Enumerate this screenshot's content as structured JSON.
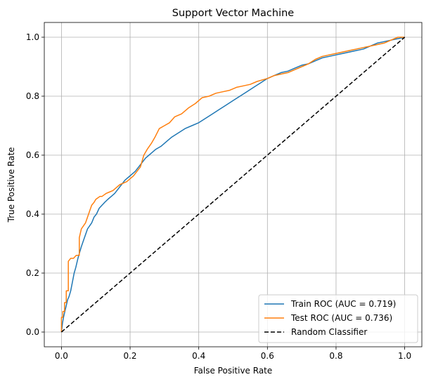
{
  "chart_data": {
    "type": "line",
    "title": "Support Vector Machine",
    "xlabel": "False Positive Rate",
    "ylabel": "True Positive Rate",
    "xlim": [
      -0.05,
      1.05
    ],
    "ylim": [
      -0.05,
      1.05
    ],
    "grid": true,
    "legend_position": "lower-right",
    "xticks": [
      {
        "value": 0.0,
        "label": "0.0"
      },
      {
        "value": 0.2,
        "label": "0.2"
      },
      {
        "value": 0.4,
        "label": "0.4"
      },
      {
        "value": 0.6,
        "label": "0.6"
      },
      {
        "value": 0.8,
        "label": "0.8"
      },
      {
        "value": 1.0,
        "label": "1.0"
      }
    ],
    "yticks": [
      {
        "value": 0.0,
        "label": "0.0"
      },
      {
        "value": 0.2,
        "label": "0.2"
      },
      {
        "value": 0.4,
        "label": "0.4"
      },
      {
        "value": 0.6,
        "label": "0.6"
      },
      {
        "value": 0.8,
        "label": "0.8"
      },
      {
        "value": 1.0,
        "label": "1.0"
      }
    ],
    "series": [
      {
        "name": "Train ROC (AUC = 0.719)",
        "color": "#1f77b4",
        "dash": "solid",
        "x": [
          0.0,
          0.003,
          0.006,
          0.01,
          0.014,
          0.018,
          0.022,
          0.027,
          0.032,
          0.037,
          0.042,
          0.048,
          0.053,
          0.058,
          0.064,
          0.07,
          0.076,
          0.082,
          0.088,
          0.095,
          0.102,
          0.11,
          0.118,
          0.126,
          0.135,
          0.145,
          0.155,
          0.165,
          0.175,
          0.185,
          0.195,
          0.205,
          0.215,
          0.225,
          0.235,
          0.245,
          0.255,
          0.265,
          0.275,
          0.29,
          0.305,
          0.32,
          0.34,
          0.36,
          0.38,
          0.4,
          0.42,
          0.44,
          0.46,
          0.48,
          0.5,
          0.52,
          0.54,
          0.56,
          0.58,
          0.6,
          0.62,
          0.64,
          0.66,
          0.68,
          0.7,
          0.72,
          0.74,
          0.76,
          0.78,
          0.8,
          0.82,
          0.84,
          0.86,
          0.88,
          0.9,
          0.92,
          0.94,
          0.96,
          0.98,
          1.0
        ],
        "y": [
          0.0,
          0.03,
          0.05,
          0.07,
          0.09,
          0.11,
          0.12,
          0.14,
          0.17,
          0.2,
          0.22,
          0.25,
          0.27,
          0.29,
          0.31,
          0.33,
          0.35,
          0.36,
          0.37,
          0.39,
          0.4,
          0.42,
          0.43,
          0.44,
          0.45,
          0.46,
          0.47,
          0.485,
          0.5,
          0.515,
          0.525,
          0.535,
          0.545,
          0.56,
          0.575,
          0.59,
          0.6,
          0.61,
          0.62,
          0.63,
          0.645,
          0.66,
          0.675,
          0.69,
          0.7,
          0.71,
          0.725,
          0.74,
          0.755,
          0.77,
          0.785,
          0.8,
          0.815,
          0.83,
          0.845,
          0.86,
          0.87,
          0.88,
          0.885,
          0.895,
          0.905,
          0.91,
          0.92,
          0.93,
          0.935,
          0.94,
          0.945,
          0.95,
          0.955,
          0.96,
          0.97,
          0.98,
          0.985,
          0.99,
          0.995,
          1.0
        ]
      },
      {
        "name": "Test ROC (AUC = 0.736)",
        "color": "#ff7f0e",
        "dash": "solid",
        "x": [
          0.0,
          0.0,
          0.004,
          0.004,
          0.009,
          0.009,
          0.014,
          0.014,
          0.02,
          0.02,
          0.027,
          0.035,
          0.043,
          0.052,
          0.052,
          0.058,
          0.064,
          0.07,
          0.076,
          0.082,
          0.088,
          0.095,
          0.1,
          0.106,
          0.112,
          0.118,
          0.124,
          0.13,
          0.14,
          0.15,
          0.16,
          0.17,
          0.18,
          0.19,
          0.2,
          0.21,
          0.22,
          0.23,
          0.24,
          0.25,
          0.262,
          0.272,
          0.285,
          0.3,
          0.315,
          0.33,
          0.35,
          0.37,
          0.39,
          0.41,
          0.43,
          0.45,
          0.47,
          0.49,
          0.51,
          0.53,
          0.55,
          0.57,
          0.6,
          0.62,
          0.64,
          0.66,
          0.68,
          0.7,
          0.72,
          0.74,
          0.76,
          0.78,
          0.8,
          0.82,
          0.84,
          0.86,
          0.88,
          0.9,
          0.92,
          0.94,
          0.96,
          0.98,
          1.0
        ],
        "y": [
          0.0,
          0.05,
          0.05,
          0.07,
          0.07,
          0.1,
          0.1,
          0.14,
          0.14,
          0.24,
          0.25,
          0.25,
          0.26,
          0.26,
          0.32,
          0.35,
          0.36,
          0.37,
          0.39,
          0.41,
          0.43,
          0.44,
          0.45,
          0.455,
          0.46,
          0.46,
          0.465,
          0.47,
          0.475,
          0.48,
          0.49,
          0.5,
          0.505,
          0.51,
          0.52,
          0.53,
          0.545,
          0.56,
          0.6,
          0.62,
          0.64,
          0.66,
          0.69,
          0.7,
          0.71,
          0.73,
          0.74,
          0.76,
          0.775,
          0.795,
          0.8,
          0.81,
          0.815,
          0.82,
          0.83,
          0.835,
          0.84,
          0.85,
          0.86,
          0.87,
          0.875,
          0.88,
          0.89,
          0.9,
          0.91,
          0.925,
          0.935,
          0.94,
          0.945,
          0.95,
          0.955,
          0.96,
          0.965,
          0.97,
          0.975,
          0.98,
          0.99,
          1.0,
          1.0
        ]
      },
      {
        "name": "Random Classifier",
        "color": "#000000",
        "dash": "dashed",
        "x": [
          0.0,
          1.0
        ],
        "y": [
          0.0,
          1.0
        ]
      }
    ]
  }
}
